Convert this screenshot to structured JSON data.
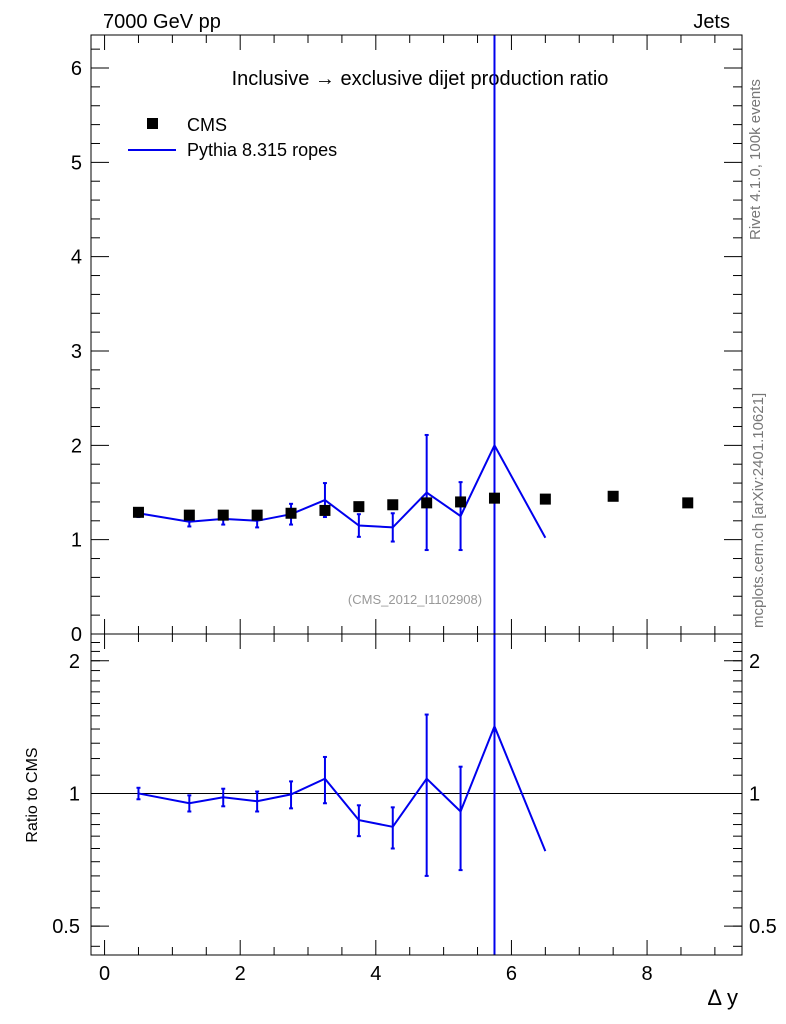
{
  "header": {
    "left": "7000 GeV pp",
    "right": "Jets"
  },
  "side_text": {
    "rivet": "Rivet 4.1.0,  100k events",
    "mcplots": "mcplots.cern.ch [arXiv:2401.10621]"
  },
  "watermark": "(CMS_2012_I1102908)",
  "colors": {
    "mc": "#0000ee",
    "data": "#000000"
  },
  "chart_data": [
    {
      "type": "scatter",
      "title": "Inclusive → exclusive dijet production ratio",
      "xlabel": "",
      "ylabel": "",
      "xlim": [
        -0.2,
        9.4
      ],
      "ylim": [
        0,
        6.35
      ],
      "y_ticks": [
        "0",
        "1",
        "2",
        "3",
        "4",
        "5",
        "6"
      ],
      "legend": [
        "CMS",
        "Pythia 8.315 ropes"
      ],
      "legend_placement": "top-left",
      "series": [
        {
          "name": "CMS",
          "style": "markers",
          "x": [
            0.5,
            1.25,
            1.75,
            2.25,
            2.75,
            3.25,
            3.75,
            4.25,
            4.75,
            5.25,
            5.75,
            6.5,
            7.5,
            8.6
          ],
          "y": [
            1.29,
            1.26,
            1.26,
            1.26,
            1.28,
            1.31,
            1.35,
            1.37,
            1.39,
            1.4,
            1.44,
            1.43,
            1.46,
            1.39
          ]
        },
        {
          "name": "Pythia 8.315 ropes",
          "style": "line",
          "x": [
            0.5,
            1.25,
            1.75,
            2.25,
            2.75,
            3.25,
            3.75,
            4.25,
            4.75,
            5.25,
            5.75,
            6.5
          ],
          "y": [
            1.28,
            1.19,
            1.22,
            1.2,
            1.27,
            1.42,
            1.15,
            1.13,
            1.5,
            1.25,
            2.0,
            1.02
          ],
          "yerr": [
            0.04,
            0.05,
            0.06,
            0.07,
            0.11,
            0.18,
            0.12,
            0.15,
            0.61,
            0.36,
            0,
            0
          ],
          "spike_x": 5.75
        }
      ]
    },
    {
      "type": "line",
      "xlabel": "Δ y",
      "ylabel": "Ratio to CMS",
      "xlim": [
        -0.2,
        9.4
      ],
      "ylim": [
        0.43,
        2.3
      ],
      "log_y": true,
      "x_ticks": [
        "0",
        "2",
        "4",
        "6",
        "8"
      ],
      "y_ticks": [
        "0.5",
        "1",
        "2"
      ],
      "reference_line": 1,
      "series": [
        {
          "name": "Pythia 8.315 ropes",
          "x": [
            0.5,
            1.25,
            1.75,
            2.25,
            2.75,
            3.25,
            3.75,
            4.25,
            4.75,
            5.25,
            5.75,
            6.5
          ],
          "y": [
            1.0,
            0.95,
            0.98,
            0.96,
            0.995,
            1.08,
            0.87,
            0.84,
            1.08,
            0.91,
            1.42,
            0.74
          ],
          "yerr": [
            0.03,
            0.04,
            0.045,
            0.05,
            0.07,
            0.13,
            0.07,
            0.09,
            0.43,
            0.24,
            0,
            0
          ],
          "spike_x": 5.75
        }
      ]
    }
  ]
}
